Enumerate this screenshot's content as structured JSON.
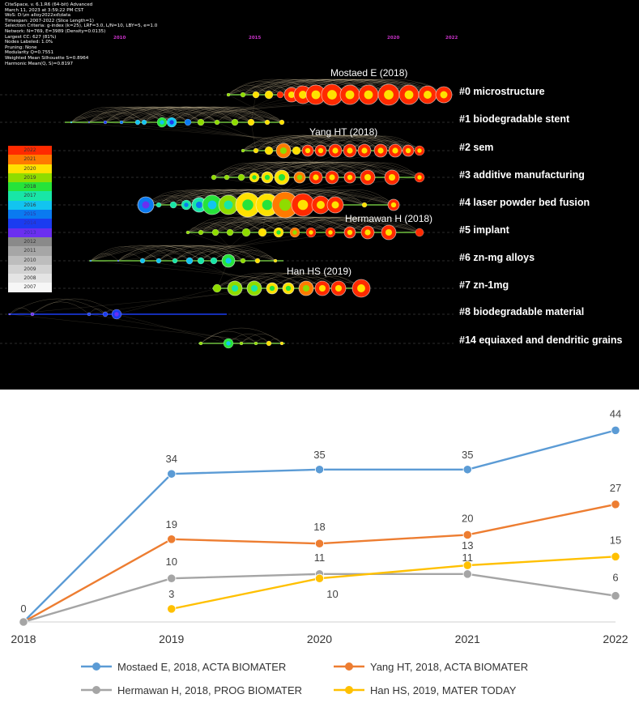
{
  "timeline_panel": {
    "meta_lines": [
      "CiteSpace, v. 6.1.R6 (64-bit) Advanced",
      "March 11, 2023 at 3:59:22 PM CST",
      "WoS: D:\\zn alloy2022xd\\data",
      "Timespan: 2007-2022 (Slice Length=1)",
      "Selection Criteria: g-index (k=25), LRF=3.0, L/N=10, LBY=5, e=1.0",
      "Network: N=769, E=3989 (Density=0.0135)",
      "Largest CC: 627 (81%)",
      "Nodes Labeled: 1.0%",
      "Pruning: None",
      "Modularity Q=0.7551",
      "Weighted Mean Silhouette S=0.8964",
      "Harmonic Mean(Q, S)=0.8197"
    ],
    "year_ticks": [
      "2010",
      "2015",
      "2020",
      "2022"
    ],
    "clusters": [
      {
        "label": "#0 microstructure"
      },
      {
        "label": "#1 biodegradable stent"
      },
      {
        "label": "#2 sem"
      },
      {
        "label": "#3 additive manufacturing"
      },
      {
        "label": "#4 laser powder bed fusion"
      },
      {
        "label": "#5 implant"
      },
      {
        "label": "#6 zn-mg alloys"
      },
      {
        "label": "#7 zn-1mg"
      },
      {
        "label": "#8 biodegradable material"
      },
      {
        "label": "#14 equiaxed and dendritic grains"
      }
    ],
    "author_labels": [
      "Mostaed E (2018)",
      "Yang HT (2018)",
      "Hermawan H (2018)",
      "Han HS (2019)"
    ],
    "legend": [
      {
        "year": "2022",
        "color": "#ff2a00"
      },
      {
        "year": "2021",
        "color": "#ff7a00"
      },
      {
        "year": "2020",
        "color": "#ffe100"
      },
      {
        "year": "2019",
        "color": "#8fdc00"
      },
      {
        "year": "2018",
        "color": "#27e33a"
      },
      {
        "year": "2017",
        "color": "#18e6a6"
      },
      {
        "year": "2016",
        "color": "#12c4f0"
      },
      {
        "year": "2015",
        "color": "#0a7af0"
      },
      {
        "year": "2014",
        "color": "#1b3cf0"
      },
      {
        "year": "2013",
        "color": "#6b2ff0"
      },
      {
        "year": "2012",
        "color": "#8a8a8a"
      },
      {
        "year": "2011",
        "color": "#a6a6a6"
      },
      {
        "year": "2010",
        "color": "#bdbdbd"
      },
      {
        "year": "2009",
        "color": "#d2d2d2"
      },
      {
        "year": "2008",
        "color": "#e4e4e4"
      },
      {
        "year": "2007",
        "color": "#f6f6f6"
      }
    ]
  },
  "chart_data": {
    "type": "line",
    "title": "",
    "xlabel": "",
    "ylabel": "",
    "x": [
      "2018",
      "2019",
      "2020",
      "2021",
      "2022"
    ],
    "ylim": [
      0,
      45
    ],
    "grid": false,
    "legend_position": "bottom",
    "series": [
      {
        "name": "Mostaed E, 2018, ACTA BIOMATER",
        "color": "#5b9bd5",
        "values": [
          0,
          34,
          35,
          35,
          44
        ]
      },
      {
        "name": "Yang HT, 2018, ACTA BIOMATER",
        "color": "#ed7d31",
        "values": [
          0,
          19,
          18,
          20,
          27
        ]
      },
      {
        "name": "Hermawan H, 2018, PROG BIOMATER",
        "color": "#a5a5a5",
        "values": [
          0,
          10,
          11,
          11,
          6
        ]
      },
      {
        "name": "Han HS, 2019, MATER TODAY",
        "color": "#ffc000",
        "values": [
          null,
          3,
          10,
          13,
          15
        ]
      }
    ]
  }
}
